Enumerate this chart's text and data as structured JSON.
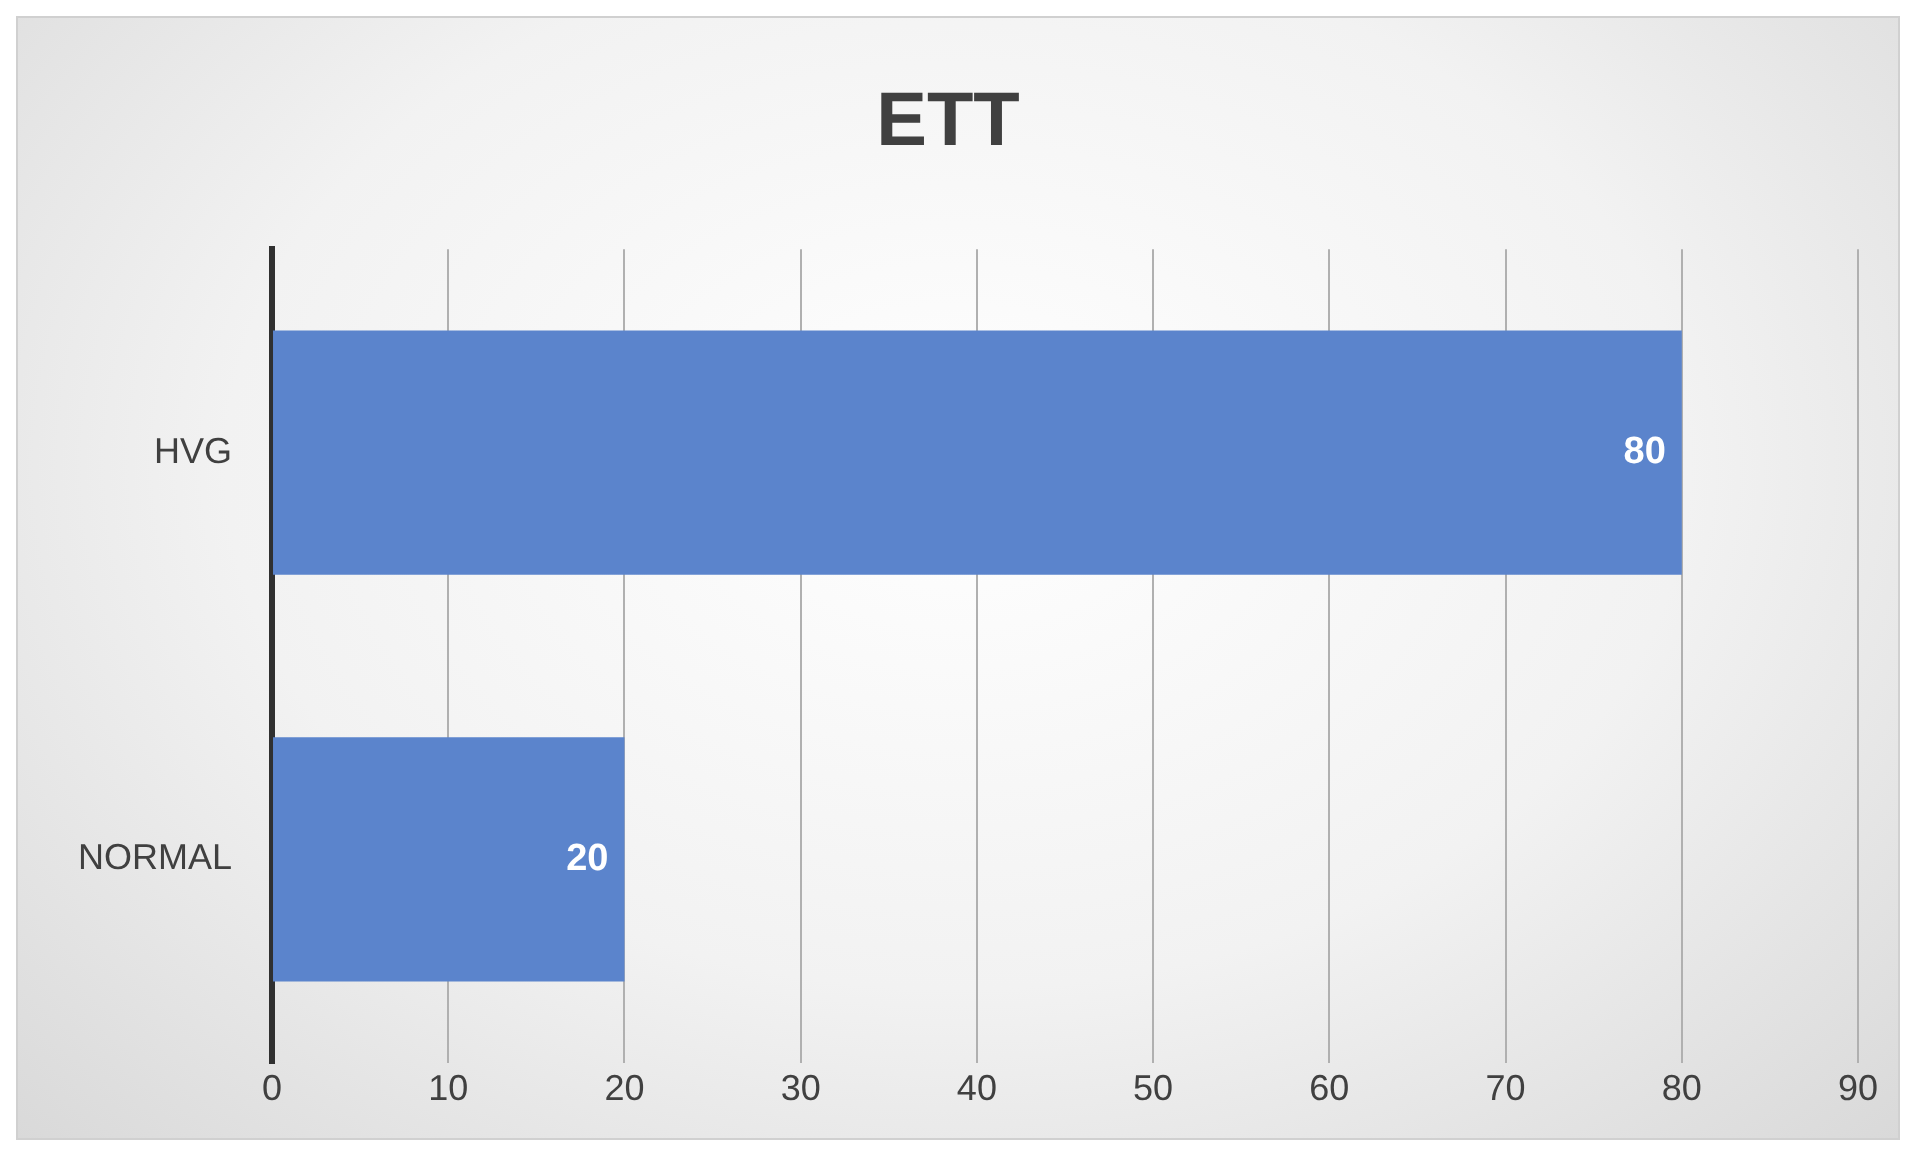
{
  "chart_data": {
    "type": "bar",
    "title": "ETT",
    "orientation": "horizontal",
    "categories": [
      "HVG",
      "NORMAL"
    ],
    "values": [
      80,
      20
    ],
    "color": "#5b84cc",
    "xlim": [
      0,
      90
    ],
    "xticks": [
      0,
      10,
      20,
      30,
      40,
      50,
      60,
      70,
      80,
      90
    ],
    "grid": "x",
    "data_labels": true,
    "legend": false
  }
}
